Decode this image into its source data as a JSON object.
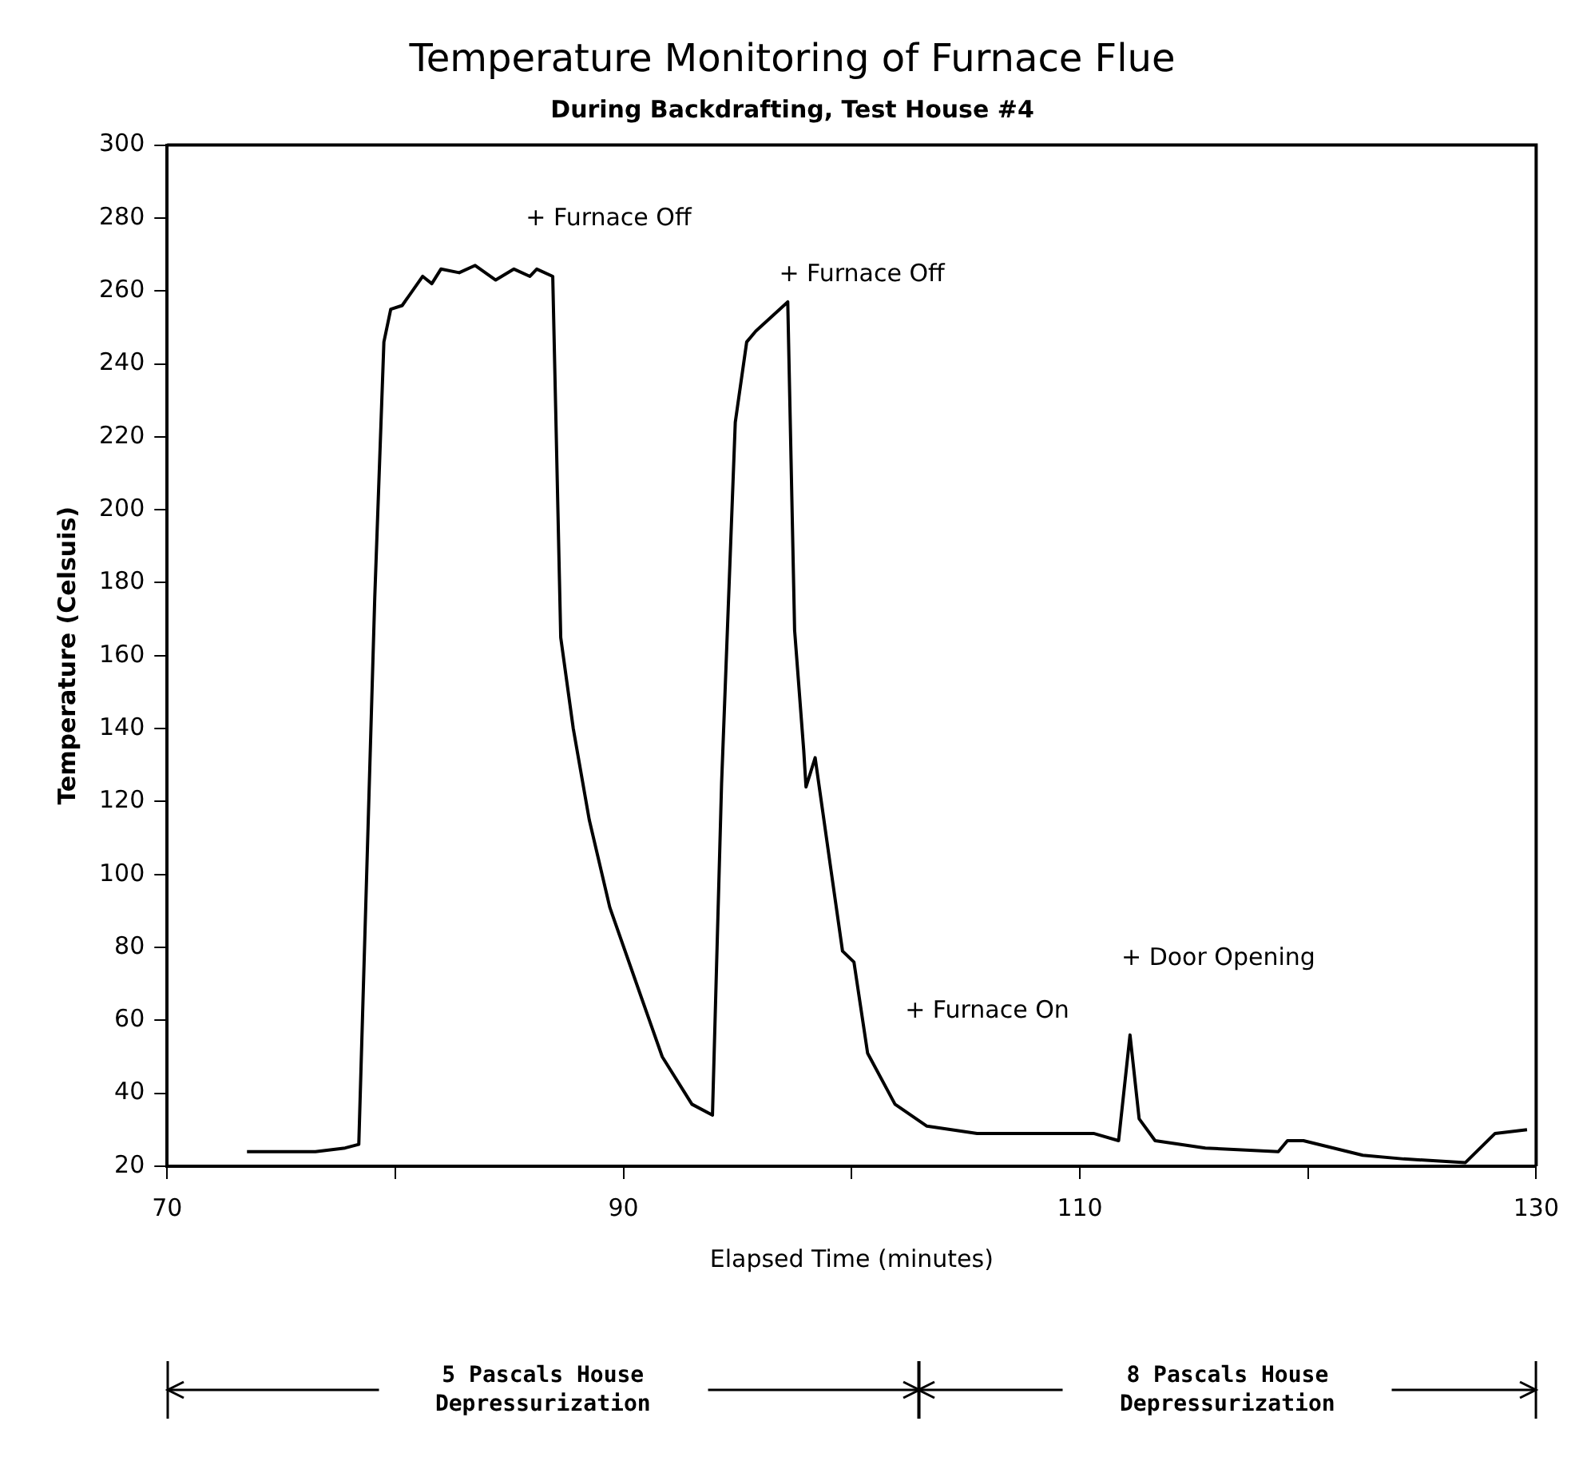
{
  "chart_data": {
    "type": "line",
    "title": "Temperature Monitoring of Furnace Flue",
    "subtitle": "During Backdrafting, Test House #4",
    "xlabel": "Elapsed Time (minutes)",
    "ylabel": "Temperature (Celsuis)",
    "xlim": [
      70,
      130
    ],
    "xticks": [
      70,
      {
        "value": 80,
        "label": null
      },
      90,
      {
        "value": 100,
        "label": null
      },
      110,
      {
        "value": 120,
        "label": null
      },
      130
    ],
    "ylim": [
      20,
      300
    ],
    "yticks": [
      20,
      40,
      60,
      80,
      100,
      120,
      140,
      160,
      180,
      200,
      220,
      240,
      260,
      280,
      300
    ],
    "grid": false,
    "legend": false,
    "marker": "none",
    "line_style": "solid",
    "series": [
      {
        "color": "#000000",
        "x": [
          73.5,
          76.5,
          77.8,
          78.4,
          79.1,
          79.5,
          79.8,
          80.3,
          81.2,
          81.6,
          82.0,
          82.8,
          83.5,
          84.4,
          85.2,
          85.9,
          86.2,
          86.9,
          87.25,
          87.8,
          88.5,
          89.4,
          90.8,
          91.7,
          93.0,
          93.9,
          94.3,
          94.9,
          95.4,
          95.8,
          97.2,
          97.5,
          97.9,
          98.0,
          98.4,
          99.1,
          99.6,
          100.1,
          100.7,
          101.9,
          103.3,
          105.5,
          110.6,
          111.7,
          112.2,
          112.6,
          113.3,
          115.5,
          118.7,
          119.1,
          119.8,
          122.4,
          124.2,
          126.9,
          128.2,
          129.6
        ],
        "values": [
          24,
          24,
          25,
          26,
          176,
          246,
          255,
          256,
          264,
          262,
          266,
          265,
          267,
          263,
          266,
          264,
          266,
          264,
          165,
          140,
          115,
          91,
          66,
          50,
          37,
          34,
          125,
          224,
          246,
          249,
          257,
          167,
          134,
          124,
          132,
          101,
          79,
          76,
          51,
          37,
          31,
          29,
          29,
          27,
          56,
          33,
          27,
          25,
          24,
          27,
          27,
          23,
          22,
          21,
          29,
          30
        ]
      }
    ],
    "annotations": [
      "+ Furnace Off",
      "+ Furnace Off",
      "+ Furnace On",
      "+ Door Opening",
      "5 Pascals House Depressurization",
      "8 Pascals House Depressurization"
    ]
  }
}
